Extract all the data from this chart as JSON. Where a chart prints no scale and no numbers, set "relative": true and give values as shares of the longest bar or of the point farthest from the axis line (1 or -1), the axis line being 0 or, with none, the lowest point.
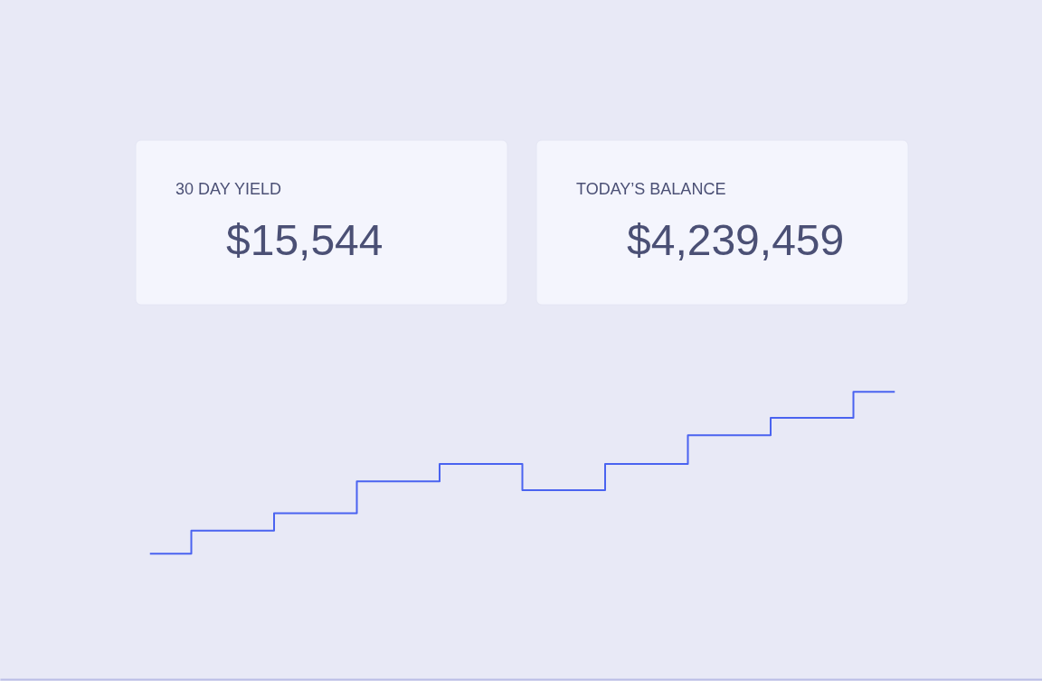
{
  "chart_data": {
    "type": "step",
    "relative": true,
    "color": "#4a63f0",
    "categories": [
      null,
      null,
      null,
      null,
      null,
      null,
      null,
      null,
      null,
      null
    ],
    "values": [
      0.44,
      0.52,
      0.58,
      0.69,
      0.75,
      0.66,
      0.75,
      0.85,
      0.91,
      1.0
    ],
    "annotations": [
      "30 DAY YIELD",
      "$15,544",
      "TODAY’S BALANCE",
      "$4,239,459"
    ]
  }
}
